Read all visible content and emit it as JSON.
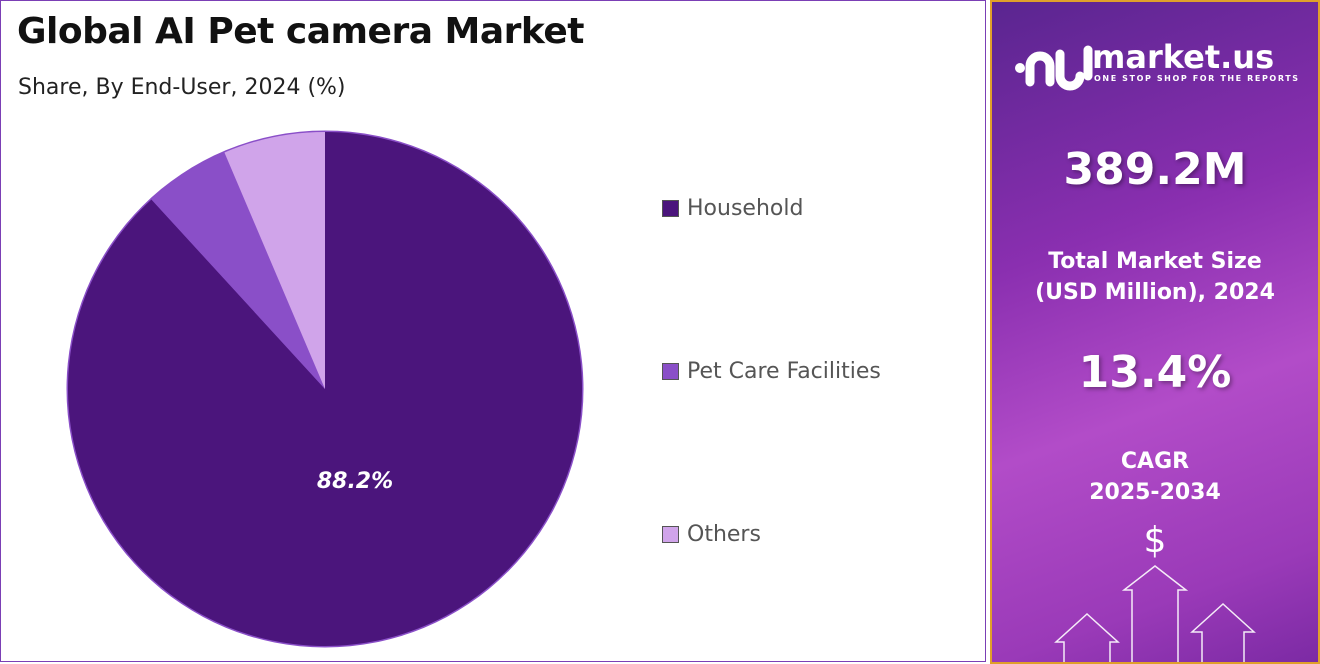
{
  "header": {
    "title": "Global AI Pet camera Market",
    "subtitle": "Share, By End-User, 2024 (%)"
  },
  "chart_data": {
    "type": "pie",
    "title": "Global AI Pet camera Market",
    "subtitle": "Share, By End-User, 2024 (%)",
    "categories": [
      "Household",
      "Pet Care Facilities",
      "Others"
    ],
    "values": [
      88.2,
      5.4,
      6.4
    ],
    "data_labels": [
      "88.2%",
      "",
      ""
    ],
    "colors": [
      "#4b157c",
      "#8a4fc8",
      "#d0a4ea"
    ],
    "legend_position": "right"
  },
  "sidebar": {
    "brand": "market.us",
    "tagline": "ONE STOP SHOP FOR THE REPORTS",
    "market_size": "389.2M",
    "market_size_label_1": "Total Market Size",
    "market_size_label_2": "(USD Million), 2024",
    "cagr": "13.4%",
    "cagr_label_1": "CAGR",
    "cagr_label_2": "2025-2034",
    "dollar_symbol": "$"
  }
}
